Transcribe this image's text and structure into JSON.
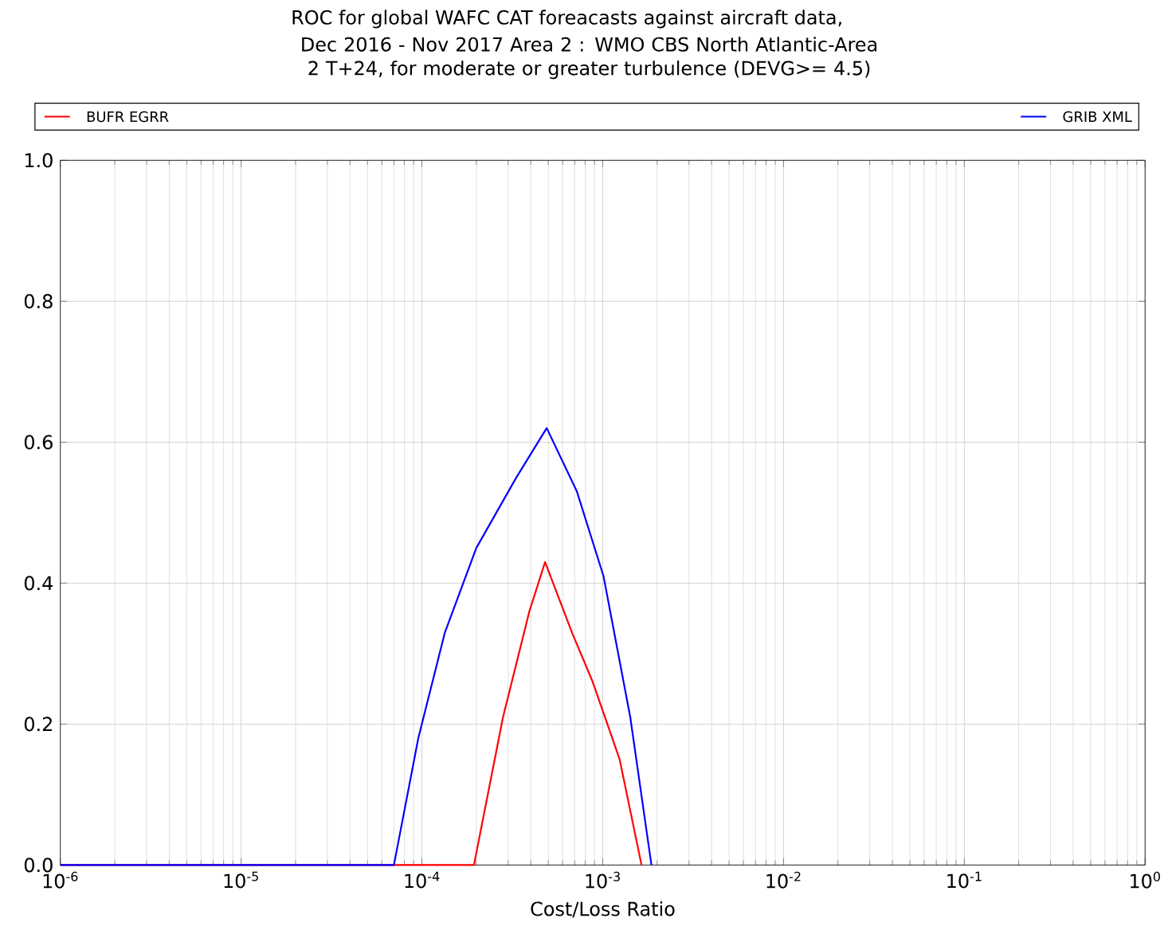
{
  "chart_data": {
    "type": "line",
    "title": "ROC for global WAFC CAT foreacasts against aircraft data,",
    "subtitle": "Dec 2016 - Nov 2017   Area 2 : WMO CBS North Atlantic-Area 2   T+24, for moderate or greater turbulence (DEVG>= 4.5)",
    "xlabel": "Cost/Loss Ratio",
    "log": "x",
    "grid": true,
    "legend": "top",
    "marker": "none",
    "line_style": "solid",
    "xlim": [
      1e-06,
      1
    ],
    "ylim": [
      0,
      1
    ],
    "xticks": [
      {
        "value": 1e-06,
        "label": "10$^{-6}$"
      },
      {
        "value": 1e-05,
        "label": "10$^{-5}$"
      },
      {
        "value": 0.0001,
        "label": "10$^{-4}$"
      },
      {
        "value": 0.001,
        "label": "10$^{-3}$"
      },
      {
        "value": 0.01,
        "label": "10$^{-2}$"
      },
      {
        "value": 0.1,
        "label": "10$^{-1}$"
      },
      {
        "value": 1,
        "label": "10$^{0}$"
      }
    ],
    "yticks": [
      {
        "value": 0,
        "label": "0.0"
      },
      {
        "value": 0.2,
        "label": "0.2"
      },
      {
        "value": 0.4,
        "label": "0.4"
      },
      {
        "value": 0.6,
        "label": "0.6"
      },
      {
        "value": 0.8,
        "label": "0.8"
      },
      {
        "value": 1,
        "label": "1.0"
      }
    ],
    "series": [
      {
        "name": "BUFR EGRR",
        "color": "#ff0000",
        "x": [
          1e-06,
          0.000194,
          0.000281,
          0.000393,
          0.00048,
          0.000676,
          0.00088,
          0.00124,
          0.00164
        ],
        "values": [
          0,
          0,
          0.21,
          0.36,
          0.43,
          0.33,
          0.26,
          0.15,
          0
        ]
      },
      {
        "name": "GRIB XML",
        "color": "#0000ff",
        "x": [
          1e-06,
          7e-05,
          9.55e-05,
          0.000134,
          0.0002,
          0.000333,
          0.00049,
          0.00072,
          0.00101,
          0.00142,
          0.00186
        ],
        "values": [
          0,
          0,
          0.18,
          0.33,
          0.45,
          0.55,
          0.62,
          0.53,
          0.41,
          0.21,
          0
        ]
      }
    ]
  }
}
